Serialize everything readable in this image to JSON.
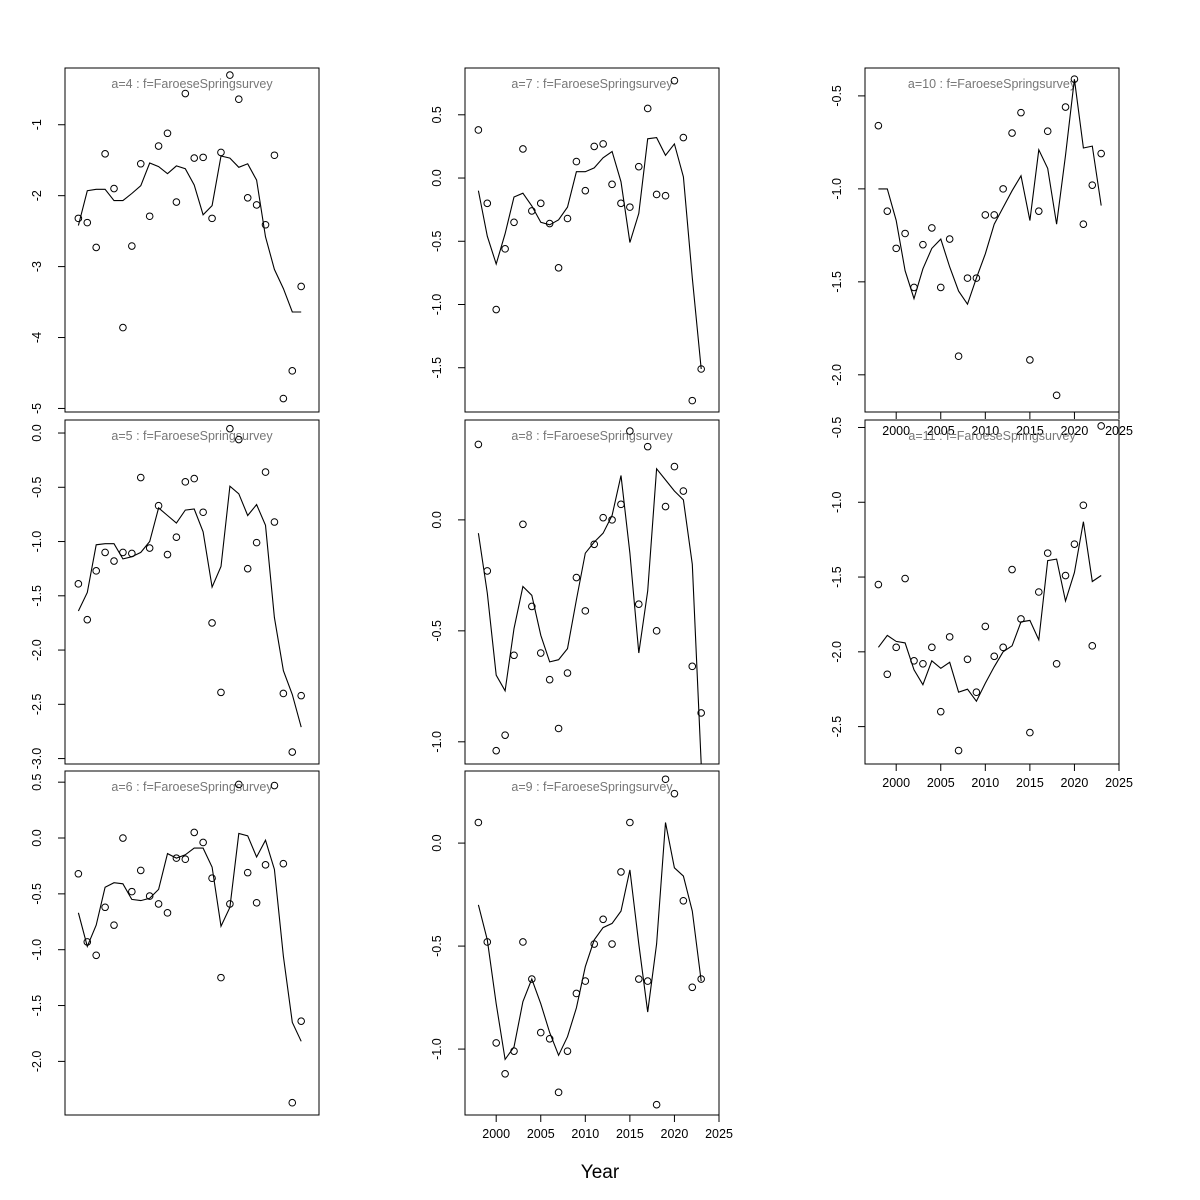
{
  "figure": {
    "xlabel": "Year",
    "x_ticks": [
      2000,
      2005,
      2010,
      2015,
      2020,
      2025
    ],
    "xlim": [
      1996.5,
      2025
    ]
  },
  "chart_data": [
    {
      "type": "scatter+line",
      "title": "a=4  :  f=FaroeseSpringsurvey",
      "ylim": [
        -5.05,
        -0.2
      ],
      "y_ticks": [
        -1,
        -2,
        -3,
        -4,
        -5
      ],
      "x": [
        1998,
        1999,
        2000,
        2001,
        2002,
        2003,
        2004,
        2005,
        2006,
        2007,
        2008,
        2009,
        2010,
        2011,
        2012,
        2013,
        2014,
        2015,
        2016,
        2017,
        2018,
        2019,
        2020,
        2021,
        2022,
        2023
      ],
      "observed": [
        -2.32,
        -2.38,
        -2.73,
        -1.41,
        -1.9,
        -3.86,
        -2.71,
        -1.55,
        -2.29,
        -1.3,
        -1.12,
        -2.09,
        -0.56,
        -1.47,
        -1.46,
        -2.32,
        -1.39,
        -0.3,
        -0.64,
        -2.03,
        -2.13,
        -2.41,
        -1.43,
        -4.86,
        -4.47,
        -3.28
      ],
      "fitted": [
        -2.42,
        -1.93,
        -1.91,
        -1.91,
        -2.07,
        -2.07,
        -1.97,
        -1.86,
        -1.54,
        -1.59,
        -1.69,
        -1.58,
        -1.62,
        -1.85,
        -2.27,
        -2.14,
        -1.44,
        -1.47,
        -1.6,
        -1.55,
        -1.78,
        -2.58,
        -3.04,
        -3.31,
        -3.64,
        -3.64
      ]
    },
    {
      "type": "scatter+line",
      "title": "a=5  :  f=FaroeseSpringsurvey",
      "ylim": [
        -3.05,
        0.12
      ],
      "y_ticks": [
        0.0,
        -0.5,
        -1.0,
        -1.5,
        -2.0,
        -2.5,
        -3.0
      ],
      "x": [
        1998,
        1999,
        2000,
        2001,
        2002,
        2003,
        2004,
        2005,
        2006,
        2007,
        2008,
        2009,
        2010,
        2011,
        2012,
        2013,
        2014,
        2015,
        2016,
        2017,
        2018,
        2019,
        2020,
        2021,
        2022,
        2023
      ],
      "observed": [
        -1.39,
        -1.72,
        -1.27,
        -1.1,
        -1.18,
        -1.1,
        -1.11,
        -0.41,
        -1.06,
        -0.67,
        -1.12,
        -0.96,
        -0.45,
        -0.42,
        -0.73,
        -1.75,
        -2.39,
        0.04,
        -0.06,
        -1.25,
        -1.01,
        -0.36,
        -0.82,
        -2.4,
        -2.94,
        -2.42
      ],
      "fitted": [
        -1.64,
        -1.47,
        -1.03,
        -1.02,
        -1.02,
        -1.16,
        -1.14,
        -1.1,
        -1.0,
        -0.69,
        -0.76,
        -0.83,
        -0.71,
        -0.7,
        -0.91,
        -1.42,
        -1.23,
        -0.49,
        -0.56,
        -0.76,
        -0.66,
        -0.85,
        -1.7,
        -2.19,
        -2.41,
        -2.71
      ]
    },
    {
      "type": "scatter+line",
      "title": "a=6  :  f=FaroeseSpringsurvey",
      "ylim": [
        -2.48,
        0.6
      ],
      "y_ticks": [
        0.5,
        0.0,
        -0.5,
        -1.0,
        -1.5,
        -2.0
      ],
      "x": [
        1998,
        1999,
        2000,
        2001,
        2002,
        2003,
        2004,
        2005,
        2006,
        2007,
        2008,
        2009,
        2010,
        2011,
        2012,
        2013,
        2014,
        2015,
        2016,
        2017,
        2018,
        2019,
        2020,
        2021,
        2022,
        2023
      ],
      "observed": [
        -0.32,
        -0.93,
        -1.05,
        -0.62,
        -0.78,
        0.0,
        -0.48,
        -0.29,
        -0.52,
        -0.59,
        -0.67,
        -0.18,
        -0.19,
        0.05,
        -0.04,
        -0.36,
        -1.25,
        -0.59,
        0.48,
        -0.31,
        -0.58,
        -0.24,
        0.47,
        -0.23,
        -2.37,
        -1.64
      ],
      "fitted": [
        -0.67,
        -0.97,
        -0.78,
        -0.44,
        -0.4,
        -0.41,
        -0.55,
        -0.56,
        -0.54,
        -0.46,
        -0.14,
        -0.18,
        -0.15,
        -0.09,
        -0.09,
        -0.26,
        -0.79,
        -0.62,
        0.04,
        0.02,
        -0.17,
        -0.02,
        -0.28,
        -1.06,
        -1.65,
        -1.82
      ]
    },
    {
      "type": "scatter+line",
      "title": "a=7  :  f=FaroeseSpringsurvey",
      "ylim": [
        -1.85,
        0.87
      ],
      "y_ticks": [
        0.5,
        0.0,
        -0.5,
        -1.0,
        -1.5
      ],
      "x": [
        1998,
        1999,
        2000,
        2001,
        2002,
        2003,
        2004,
        2005,
        2006,
        2007,
        2008,
        2009,
        2010,
        2011,
        2012,
        2013,
        2014,
        2015,
        2016,
        2017,
        2018,
        2019,
        2020,
        2021,
        2022,
        2023
      ],
      "observed": [
        0.38,
        -0.2,
        -1.04,
        -0.56,
        -0.35,
        0.23,
        -0.26,
        -0.2,
        -0.36,
        -0.71,
        -0.32,
        0.13,
        -0.1,
        0.25,
        0.27,
        -0.05,
        -0.2,
        -0.23,
        0.09,
        0.55,
        -0.13,
        -0.14,
        0.77,
        0.32,
        -1.76,
        -1.51
      ],
      "fitted": [
        -0.1,
        -0.46,
        -0.68,
        -0.44,
        -0.15,
        -0.12,
        -0.22,
        -0.35,
        -0.37,
        -0.33,
        -0.23,
        0.05,
        0.05,
        0.08,
        0.16,
        0.21,
        -0.03,
        -0.51,
        -0.28,
        0.31,
        0.32,
        0.18,
        0.27,
        0.01,
        -0.79,
        -1.51
      ]
    },
    {
      "type": "scatter+line",
      "title": "a=8  :  f=FaroeseSpringsurvey",
      "ylim": [
        -1.1,
        0.45
      ],
      "y_ticks": [
        0.0,
        -0.5,
        -1.0
      ],
      "x": [
        1998,
        1999,
        2000,
        2001,
        2002,
        2003,
        2004,
        2005,
        2006,
        2007,
        2008,
        2009,
        2010,
        2011,
        2012,
        2013,
        2014,
        2015,
        2016,
        2017,
        2018,
        2019,
        2020,
        2021,
        2022,
        2023
      ],
      "observed": [
        0.34,
        -0.23,
        -1.04,
        -0.97,
        -0.61,
        -0.02,
        -0.39,
        -0.6,
        -0.72,
        -0.94,
        -0.69,
        -0.26,
        -0.41,
        -0.11,
        0.01,
        0.0,
        0.07,
        0.4,
        -0.38,
        0.33,
        -0.5,
        0.06,
        0.24,
        0.13,
        -0.66,
        -0.87
      ],
      "fitted": [
        -0.06,
        -0.33,
        -0.7,
        -0.77,
        -0.49,
        -0.3,
        -0.34,
        -0.52,
        -0.64,
        -0.63,
        -0.58,
        -0.36,
        -0.15,
        -0.1,
        -0.06,
        0.02,
        0.2,
        -0.15,
        -0.6,
        -0.32,
        0.23,
        0.18,
        0.13,
        0.09,
        -0.2,
        -1.1
      ]
    },
    {
      "type": "scatter+line",
      "title": "a=9  :  f=FaroeseSpringsurvey",
      "ylim": [
        -1.32,
        0.35
      ],
      "y_ticks": [
        0.0,
        -0.5,
        -1.0
      ],
      "x": [
        1998,
        1999,
        2000,
        2001,
        2002,
        2003,
        2004,
        2005,
        2006,
        2007,
        2008,
        2009,
        2010,
        2011,
        2012,
        2013,
        2014,
        2015,
        2016,
        2017,
        2018,
        2019,
        2020,
        2021,
        2022,
        2023
      ],
      "observed": [
        0.1,
        -0.48,
        -0.97,
        -1.12,
        -1.01,
        -0.48,
        -0.66,
        -0.92,
        -0.95,
        -1.21,
        -1.01,
        -0.73,
        -0.67,
        -0.49,
        -0.37,
        -0.49,
        -0.14,
        0.1,
        -0.66,
        -0.67,
        -1.27,
        0.31,
        0.24,
        -0.28,
        -0.7,
        -0.66
      ],
      "fitted": [
        -0.3,
        -0.47,
        -0.78,
        -1.05,
        -0.99,
        -0.77,
        -0.66,
        -0.78,
        -0.92,
        -1.03,
        -0.94,
        -0.8,
        -0.6,
        -0.47,
        -0.41,
        -0.39,
        -0.33,
        -0.13,
        -0.49,
        -0.82,
        -0.49,
        0.1,
        -0.12,
        -0.16,
        -0.33,
        -0.67
      ]
    },
    {
      "type": "scatter+line",
      "title": "a=10  :  f=FaroeseSpringsurvey",
      "ylim": [
        -2.2,
        -0.35
      ],
      "y_ticks": [
        -0.5,
        -1.0,
        -1.5,
        -2.0
      ],
      "x": [
        1998,
        1999,
        2000,
        2001,
        2002,
        2003,
        2004,
        2005,
        2006,
        2007,
        2008,
        2009,
        2010,
        2011,
        2012,
        2013,
        2014,
        2015,
        2016,
        2017,
        2018,
        2019,
        2020,
        2021,
        2022,
        2023
      ],
      "observed": [
        -0.66,
        -1.12,
        -1.32,
        -1.24,
        -1.53,
        -1.3,
        -1.21,
        -1.53,
        -1.27,
        -1.9,
        -1.48,
        -1.48,
        -1.14,
        -1.14,
        -1.0,
        -0.7,
        -0.59,
        -1.92,
        -1.12,
        -0.69,
        -2.11,
        -0.56,
        -0.41,
        -1.19,
        -0.98,
        -0.81
      ],
      "fitted": [
        -1.0,
        -1.0,
        -1.17,
        -1.44,
        -1.59,
        -1.43,
        -1.32,
        -1.27,
        -1.42,
        -1.55,
        -1.62,
        -1.48,
        -1.35,
        -1.19,
        -1.1,
        -1.01,
        -0.93,
        -1.17,
        -0.79,
        -0.89,
        -1.19,
        -0.82,
        -0.41,
        -0.78,
        -0.77,
        -1.09
      ]
    },
    {
      "type": "scatter+line",
      "title": "a=11  :  f=FaroeseSpringsurvey",
      "ylim": [
        -2.75,
        -0.45
      ],
      "y_ticks": [
        -0.5,
        -1.0,
        -1.5,
        -2.0,
        -2.5
      ],
      "x": [
        1998,
        1999,
        2000,
        2001,
        2002,
        2003,
        2004,
        2005,
        2006,
        2007,
        2008,
        2009,
        2010,
        2011,
        2012,
        2013,
        2014,
        2015,
        2016,
        2017,
        2018,
        2019,
        2020,
        2021,
        2022,
        2023
      ],
      "observed": [
        -1.55,
        -2.15,
        -1.97,
        -1.51,
        -2.06,
        -2.08,
        -1.97,
        -2.4,
        -1.9,
        -2.66,
        -2.05,
        -2.27,
        -1.83,
        -2.03,
        -1.97,
        -1.45,
        -1.78,
        -2.54,
        -1.6,
        -1.34,
        -2.08,
        -1.49,
        -1.28,
        -1.02,
        -1.96,
        -0.49
      ],
      "fitted": [
        -1.97,
        -1.89,
        -1.93,
        -1.94,
        -2.12,
        -2.22,
        -2.06,
        -2.11,
        -2.07,
        -2.27,
        -2.25,
        -2.33,
        -2.21,
        -2.1,
        -2.0,
        -1.96,
        -1.8,
        -1.79,
        -1.92,
        -1.39,
        -1.38,
        -1.66,
        -1.47,
        -1.13,
        -1.53,
        -1.49
      ]
    }
  ]
}
